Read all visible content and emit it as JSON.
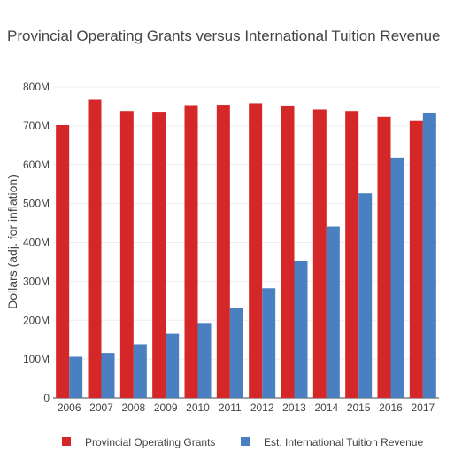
{
  "chart_data": {
    "type": "bar",
    "title": "Provincial Operating Grants versus International Tuition Revenue",
    "xlabel": "",
    "ylabel": "Dollars (adj. for inflation)",
    "categories": [
      "2006",
      "2007",
      "2008",
      "2009",
      "2010",
      "2011",
      "2012",
      "2013",
      "2014",
      "2015",
      "2016",
      "2017"
    ],
    "series": [
      {
        "name": "Provincial Operating Grants",
        "color": "#d62728",
        "values": [
          702,
          767,
          738,
          736,
          751,
          752,
          758,
          750,
          742,
          738,
          723,
          714
        ]
      },
      {
        "name": "Est. International Tuition Revenue",
        "color": "#4a7fc1",
        "values": [
          106,
          116,
          138,
          165,
          193,
          232,
          282,
          351,
          441,
          526,
          618,
          734
        ]
      }
    ],
    "ylim": [
      0,
      800
    ],
    "yticks": [
      0,
      100,
      200,
      300,
      400,
      500,
      600,
      700,
      800
    ],
    "ytick_labels": [
      "0",
      "100M",
      "200M",
      "300M",
      "400M",
      "500M",
      "600M",
      "700M",
      "800M"
    ],
    "grid": true,
    "legend_position": "bottom"
  }
}
